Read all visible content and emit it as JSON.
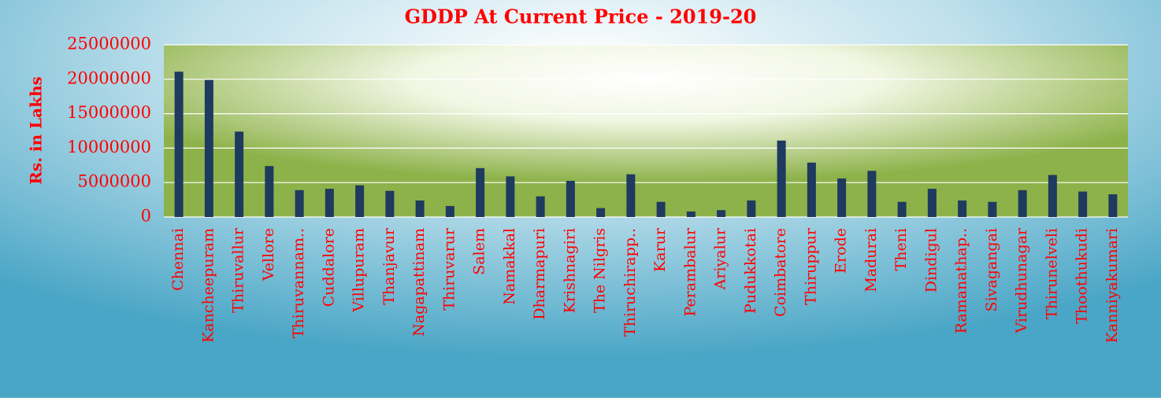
{
  "chart_data": {
    "type": "bar",
    "title": "GDDP At Current Price - 2019-20",
    "y_label": "Rs. in Lakhs",
    "categories": [
      "Chennai",
      "Kancheepuram",
      "Thiruvallur",
      "Vellore",
      "Thiruvannam..",
      "Cuddalore",
      "Villupuram",
      "Thanjavur",
      "Nagapattinam",
      "Thiruvarur",
      "Salem",
      "Namakkal",
      "Dharmapuri",
      "Krishnagiri",
      "The Nilgris",
      "Thiruchirapp..",
      "Karur",
      "Perambalur",
      "Ariyalur",
      "Pudukkotai",
      "Coimbatore",
      "Thiruppur",
      "Erode",
      "Madurai",
      "Theni",
      "Dindigul",
      "Ramanathap..",
      "Sivagangai",
      "Virudhunagar",
      "Thirunelveli",
      "Thoothukudi",
      "Kanniyakumari"
    ],
    "values": [
      21100000,
      19900000,
      12400000,
      7400000,
      3900000,
      4100000,
      4600000,
      3800000,
      2400000,
      1600000,
      7100000,
      5900000,
      3000000,
      5250000,
      1300000,
      6200000,
      2200000,
      800000,
      1000000,
      2400000,
      11100000,
      7900000,
      5600000,
      6700000,
      2200000,
      4100000,
      2400000,
      2200000,
      3900000,
      6100000,
      3700000,
      3300000
    ],
    "color": "#1f3a5f",
    "ylim": [
      0,
      25000000
    ],
    "yticks": [
      0,
      5000000,
      10000000,
      15000000,
      20000000,
      25000000
    ],
    "grid": true
  }
}
